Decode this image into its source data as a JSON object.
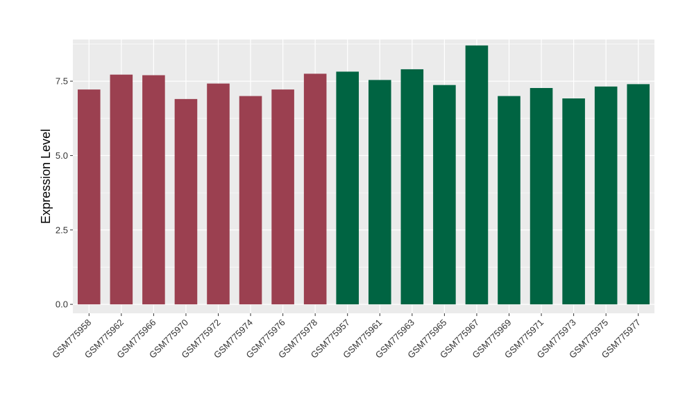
{
  "chart_data": {
    "type": "bar",
    "title": "",
    "xlabel": "",
    "ylabel": "Expression Level",
    "ylim": [
      -0.3,
      8.9
    ],
    "yticks": [
      0.0,
      2.5,
      5.0,
      7.5
    ],
    "ytick_labels": [
      "0.0",
      "2.5",
      "5.0",
      "7.5"
    ],
    "grid": true,
    "legend": "none",
    "categories": [
      "GSM775958",
      "GSM775962",
      "GSM775966",
      "GSM775970",
      "GSM775972",
      "GSM775974",
      "GSM775976",
      "GSM775978",
      "GSM775957",
      "GSM775961",
      "GSM775963",
      "GSM775965",
      "GSM775967",
      "GSM775969",
      "GSM775971",
      "GSM775973",
      "GSM775975",
      "GSM775977"
    ],
    "values": [
      7.22,
      7.72,
      7.7,
      6.9,
      7.42,
      7.0,
      7.22,
      7.75,
      7.82,
      7.54,
      7.9,
      7.37,
      8.7,
      7.0,
      7.27,
      6.92,
      7.32,
      7.4
    ],
    "bar_colors": [
      "#9b4050",
      "#9b4050",
      "#9b4050",
      "#9b4050",
      "#9b4050",
      "#9b4050",
      "#9b4050",
      "#9b4050",
      "#006442",
      "#006442",
      "#006442",
      "#006442",
      "#006442",
      "#006442",
      "#006442",
      "#006442",
      "#006442",
      "#006442"
    ],
    "panel_color": "#ebebeb",
    "grid_color": "#ffffff"
  }
}
